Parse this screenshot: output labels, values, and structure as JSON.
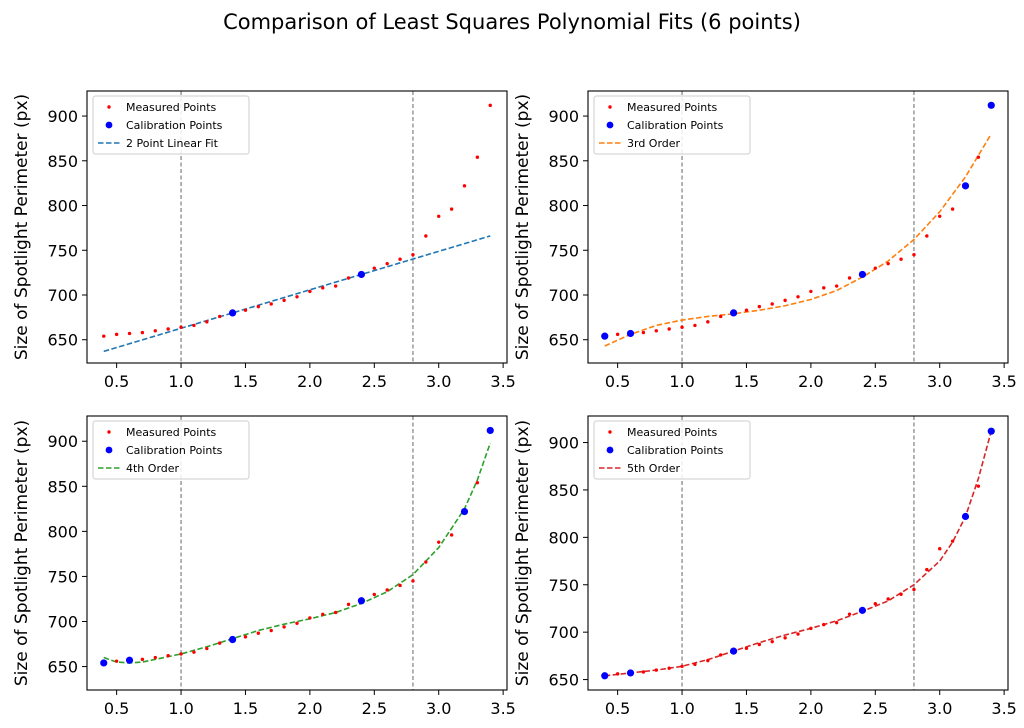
{
  "figure": {
    "title": "Comparison of Least Squares Polynomial Fits (6 points)"
  },
  "colors": {
    "measured": "#ff0000",
    "calibration": "#0000ff",
    "vline": "#808080",
    "frame": "#000000",
    "fit_linear": "#1f77b4",
    "fit_3rd": "#ff7f0e",
    "fit_4th": "#2ca02c",
    "fit_5th": "#d62728"
  },
  "chart_data": [
    {
      "type": "scatter",
      "title": "",
      "xlabel": "",
      "ylabel": "Size of Spotlight Perimeter (px)",
      "xlim": [
        0.27,
        3.53
      ],
      "ylim": [
        624,
        928
      ],
      "xticks": [
        0.5,
        1.0,
        1.5,
        2.0,
        2.5,
        3.0,
        3.5
      ],
      "xtick_labels": [
        "0.5",
        "1.0",
        "1.5",
        "2.0",
        "2.5",
        "3.0",
        "3.5"
      ],
      "yticks": [
        650,
        700,
        750,
        800,
        850,
        900
      ],
      "ytick_labels": [
        "650",
        "700",
        "750",
        "800",
        "850",
        "900"
      ],
      "vlines": [
        1.0,
        2.8
      ],
      "legend_position": "top-left",
      "series": [
        {
          "name": "Measured Points",
          "kind": "scatter-small",
          "x": [
            0.4,
            0.5,
            0.6,
            0.7,
            0.8,
            0.9,
            1.0,
            1.1,
            1.2,
            1.3,
            1.4,
            1.5,
            1.6,
            1.7,
            1.8,
            1.9,
            2.0,
            2.1,
            2.2,
            2.3,
            2.4,
            2.5,
            2.6,
            2.7,
            2.8,
            2.9,
            3.0,
            3.1,
            3.2,
            3.3,
            3.4
          ],
          "y": [
            654,
            656,
            657,
            658,
            660,
            662,
            664,
            666,
            670,
            676,
            680,
            683,
            687,
            690,
            694,
            698,
            704,
            708,
            710,
            719,
            723,
            730,
            735,
            740,
            745,
            766,
            788,
            796,
            822,
            854,
            912
          ]
        },
        {
          "name": "Calibration Points",
          "kind": "scatter-large",
          "x": [
            1.4,
            2.4
          ],
          "y": [
            680,
            723
          ]
        },
        {
          "name": "2 Point Linear Fit",
          "kind": "line-dashed",
          "color_key": "fit_linear",
          "x": [
            0.4,
            3.4
          ],
          "y": [
            637,
            766
          ]
        }
      ]
    },
    {
      "type": "scatter",
      "title": "",
      "xlabel": "",
      "ylabel": "Size of Spotlight Perimeter (px)",
      "xlim": [
        0.27,
        3.53
      ],
      "ylim": [
        624,
        928
      ],
      "xticks": [
        0.5,
        1.0,
        1.5,
        2.0,
        2.5,
        3.0,
        3.5
      ],
      "xtick_labels": [
        "0.5",
        "1.0",
        "1.5",
        "2.0",
        "2.5",
        "3.0",
        "3.5"
      ],
      "yticks": [
        650,
        700,
        750,
        800,
        850,
        900
      ],
      "ytick_labels": [
        "650",
        "700",
        "750",
        "800",
        "850",
        "900"
      ],
      "vlines": [
        1.0,
        2.8
      ],
      "legend_position": "top-left",
      "series": [
        {
          "name": "Measured Points",
          "kind": "scatter-small",
          "x": [
            0.4,
            0.5,
            0.6,
            0.7,
            0.8,
            0.9,
            1.0,
            1.1,
            1.2,
            1.3,
            1.4,
            1.5,
            1.6,
            1.7,
            1.8,
            1.9,
            2.0,
            2.1,
            2.2,
            2.3,
            2.4,
            2.5,
            2.6,
            2.7,
            2.8,
            2.9,
            3.0,
            3.1,
            3.2,
            3.3,
            3.4
          ],
          "y": [
            654,
            656,
            657,
            658,
            660,
            662,
            664,
            666,
            670,
            676,
            680,
            683,
            687,
            690,
            694,
            698,
            704,
            708,
            710,
            719,
            723,
            730,
            735,
            740,
            745,
            766,
            788,
            796,
            822,
            854,
            912
          ]
        },
        {
          "name": "Calibration Points",
          "kind": "scatter-large",
          "x": [
            0.4,
            0.6,
            1.4,
            2.4,
            3.2,
            3.4
          ],
          "y": [
            654,
            657,
            680,
            723,
            822,
            912
          ]
        },
        {
          "name": "3rd Order",
          "kind": "line-dashed",
          "color_key": "fit_3rd",
          "x": [
            0.4,
            0.6,
            0.8,
            1.0,
            1.2,
            1.4,
            1.6,
            1.8,
            2.0,
            2.2,
            2.4,
            2.6,
            2.8,
            3.0,
            3.2,
            3.4
          ],
          "y": [
            643,
            656,
            666,
            672,
            676,
            679,
            683,
            688,
            695,
            705,
            720,
            738,
            762,
            793,
            832,
            880
          ]
        }
      ]
    },
    {
      "type": "scatter",
      "title": "",
      "xlabel": "",
      "ylabel": "Size of Spotlight Perimeter (px)",
      "xlim": [
        0.27,
        3.53
      ],
      "ylim": [
        624,
        928
      ],
      "xticks": [
        0.5,
        1.0,
        1.5,
        2.0,
        2.5,
        3.0,
        3.5
      ],
      "xtick_labels": [
        "0.5",
        "1.0",
        "1.5",
        "2.0",
        "2.5",
        "3.0",
        "3.5"
      ],
      "yticks": [
        650,
        700,
        750,
        800,
        850,
        900
      ],
      "ytick_labels": [
        "650",
        "700",
        "750",
        "800",
        "850",
        "900"
      ],
      "vlines": [
        1.0,
        2.8
      ],
      "legend_position": "top-left",
      "series": [
        {
          "name": "Measured Points",
          "kind": "scatter-small",
          "x": [
            0.4,
            0.5,
            0.6,
            0.7,
            0.8,
            0.9,
            1.0,
            1.1,
            1.2,
            1.3,
            1.4,
            1.5,
            1.6,
            1.7,
            1.8,
            1.9,
            2.0,
            2.1,
            2.2,
            2.3,
            2.4,
            2.5,
            2.6,
            2.7,
            2.8,
            2.9,
            3.0,
            3.1,
            3.2,
            3.3,
            3.4
          ],
          "y": [
            654,
            656,
            657,
            658,
            660,
            662,
            664,
            666,
            670,
            676,
            680,
            683,
            687,
            690,
            694,
            698,
            704,
            708,
            710,
            719,
            723,
            730,
            735,
            740,
            745,
            766,
            788,
            796,
            822,
            854,
            912
          ]
        },
        {
          "name": "Calibration Points",
          "kind": "scatter-large",
          "x": [
            0.4,
            0.6,
            1.4,
            2.4,
            3.2,
            3.4
          ],
          "y": [
            654,
            657,
            680,
            723,
            822,
            912
          ]
        },
        {
          "name": "4th Order",
          "kind": "line-dashed",
          "color_key": "fit_4th",
          "x": [
            0.4,
            0.5,
            0.6,
            0.7,
            0.8,
            1.0,
            1.2,
            1.4,
            1.6,
            1.8,
            2.0,
            2.2,
            2.4,
            2.6,
            2.8,
            3.0,
            3.2,
            3.3,
            3.4
          ],
          "y": [
            660,
            655,
            654,
            655,
            658,
            664,
            672,
            681,
            690,
            697,
            703,
            710,
            720,
            733,
            752,
            782,
            825,
            857,
            898
          ]
        }
      ]
    },
    {
      "type": "scatter",
      "title": "",
      "xlabel": "",
      "ylabel": "Size of Spotlight Perimeter (px)",
      "xlim": [
        0.27,
        3.53
      ],
      "ylim": [
        639,
        928
      ],
      "xticks": [
        0.5,
        1.0,
        1.5,
        2.0,
        2.5,
        3.0,
        3.5
      ],
      "xtick_labels": [
        "0.5",
        "1.0",
        "1.5",
        "2.0",
        "2.5",
        "3.0",
        "3.5"
      ],
      "yticks": [
        650,
        700,
        750,
        800,
        850,
        900
      ],
      "ytick_labels": [
        "650",
        "700",
        "750",
        "800",
        "850",
        "900"
      ],
      "vlines": [
        1.0,
        2.8
      ],
      "legend_position": "top-left",
      "series": [
        {
          "name": "Measured Points",
          "kind": "scatter-small",
          "x": [
            0.4,
            0.5,
            0.6,
            0.7,
            0.8,
            0.9,
            1.0,
            1.1,
            1.2,
            1.3,
            1.4,
            1.5,
            1.6,
            1.7,
            1.8,
            1.9,
            2.0,
            2.1,
            2.2,
            2.3,
            2.4,
            2.5,
            2.6,
            2.7,
            2.8,
            2.9,
            3.0,
            3.1,
            3.2,
            3.3,
            3.4
          ],
          "y": [
            654,
            656,
            657,
            658,
            660,
            662,
            664,
            666,
            670,
            676,
            680,
            683,
            687,
            690,
            694,
            698,
            704,
            708,
            710,
            719,
            723,
            730,
            735,
            740,
            745,
            766,
            788,
            796,
            822,
            854,
            912
          ]
        },
        {
          "name": "Calibration Points",
          "kind": "scatter-large",
          "x": [
            0.4,
            0.6,
            1.4,
            2.4,
            3.2,
            3.4
          ],
          "y": [
            654,
            657,
            680,
            723,
            822,
            912
          ]
        },
        {
          "name": "5th Order",
          "kind": "line-dashed",
          "color_key": "fit_5th",
          "x": [
            0.4,
            0.6,
            0.8,
            1.0,
            1.2,
            1.4,
            1.6,
            1.8,
            2.0,
            2.2,
            2.4,
            2.6,
            2.8,
            3.0,
            3.1,
            3.2,
            3.3,
            3.4
          ],
          "y": [
            654,
            657,
            660,
            664,
            671,
            680,
            689,
            697,
            704,
            712,
            722,
            733,
            750,
            775,
            795,
            822,
            862,
            912
          ]
        }
      ]
    }
  ]
}
